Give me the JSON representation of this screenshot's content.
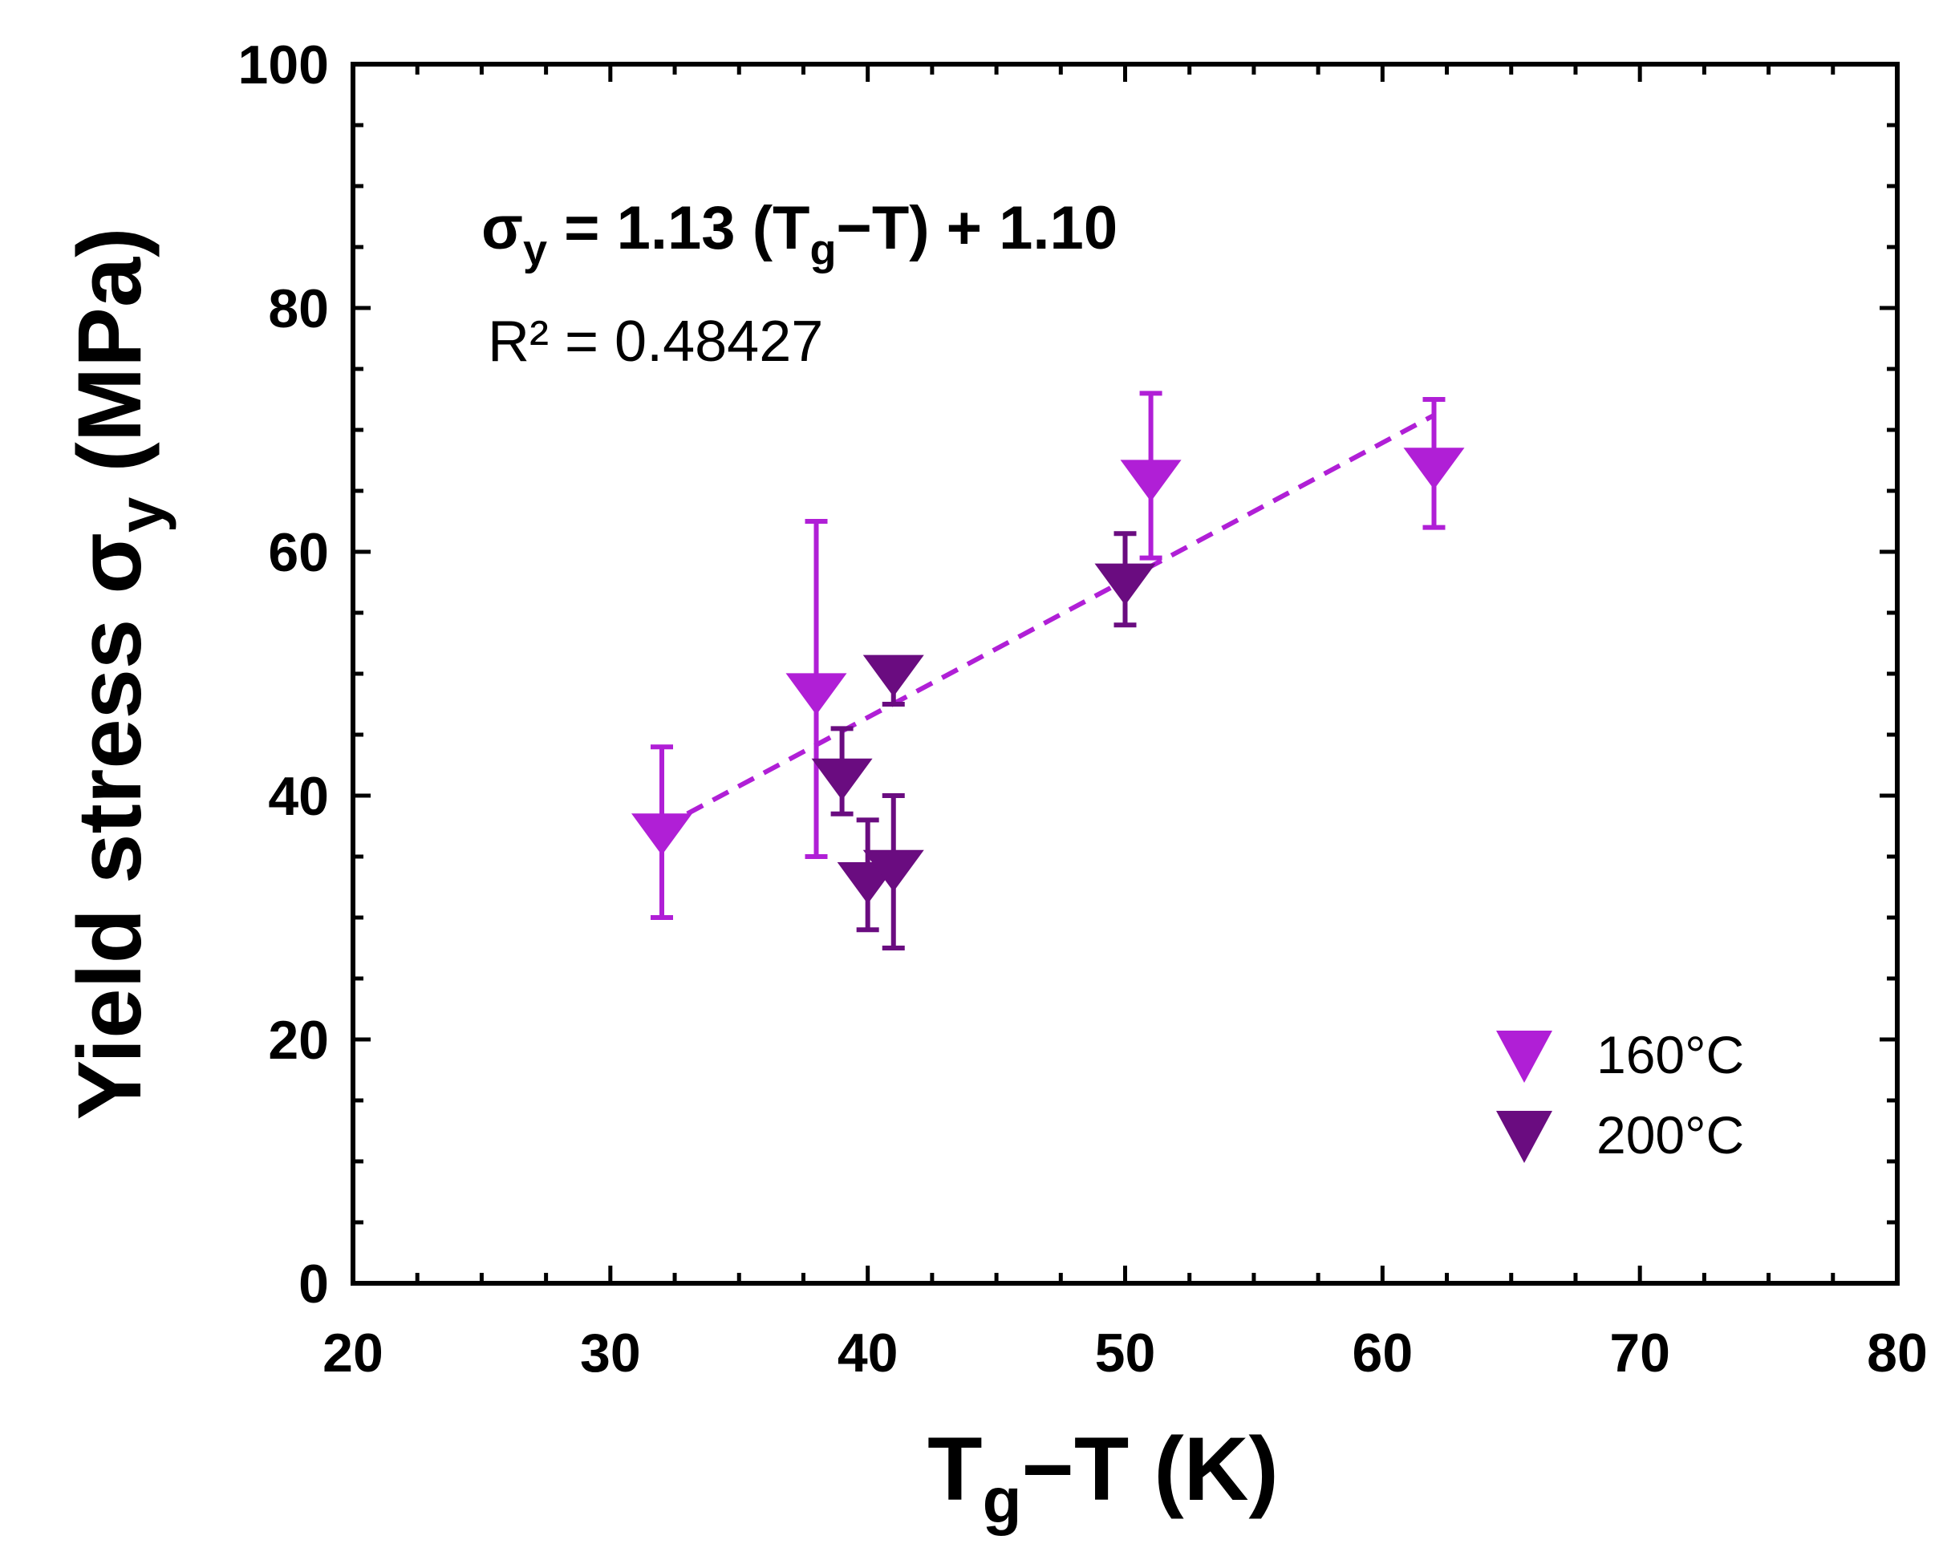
{
  "chart_data": {
    "type": "scatter",
    "xlabel_main": "T",
    "xlabel_sub": "g",
    "xlabel_rest": "−T (K)",
    "ylabel_main": "Yield stress σ",
    "ylabel_sub": "y",
    "ylabel_rest": " (MPa)",
    "xlim": [
      20,
      80
    ],
    "ylim": [
      0,
      100
    ],
    "x_ticks": [
      20,
      30,
      40,
      50,
      60,
      70,
      80
    ],
    "y_ticks": [
      0,
      20,
      40,
      60,
      80,
      100
    ],
    "x_minor_step": 2.5,
    "y_minor_step": 5,
    "series": [
      {
        "name": "160°C",
        "color": "#b01fd6",
        "marker": "triangle-down",
        "points": [
          {
            "x": 32,
            "y": 37,
            "err_low": 30,
            "err_high": 44
          },
          {
            "x": 38,
            "y": 48.5,
            "err_low": 35,
            "err_high": 62.5
          },
          {
            "x": 51,
            "y": 66,
            "err_low": 59.5,
            "err_high": 73
          },
          {
            "x": 62,
            "y": 67,
            "err_low": 62,
            "err_high": 72.5
          }
        ]
      },
      {
        "name": "200°C",
        "color": "#6a0c80",
        "marker": "triangle-down",
        "points": [
          {
            "x": 39,
            "y": 41.5,
            "err_low": 38.5,
            "err_high": 45.5
          },
          {
            "x": 40,
            "y": 33,
            "err_low": 29,
            "err_high": 38
          },
          {
            "x": 41,
            "y": 34,
            "err_low": 27.5,
            "err_high": 40
          },
          {
            "x": 41,
            "y": 50,
            "err_low": 47.5,
            "err_high": 50
          },
          {
            "x": 50,
            "y": 57.5,
            "err_low": 54,
            "err_high": 61.5
          }
        ]
      }
    ],
    "fit": {
      "x_start": 32,
      "x_end": 62,
      "y_start": 37.4,
      "y_end": 71.2,
      "color": "#b01fd6",
      "style": "dashed"
    },
    "annotations": {
      "eq_sigma": "σ",
      "eq_sigma_sub": "y",
      "eq_mid": " = 1.13 (T",
      "eq_t_sub": "g",
      "eq_end": "−T) + 1.10",
      "r2": "R² = 0.48427"
    },
    "legend": {
      "position": "bottom-right",
      "entries": [
        "160°C",
        "200°C"
      ]
    }
  }
}
